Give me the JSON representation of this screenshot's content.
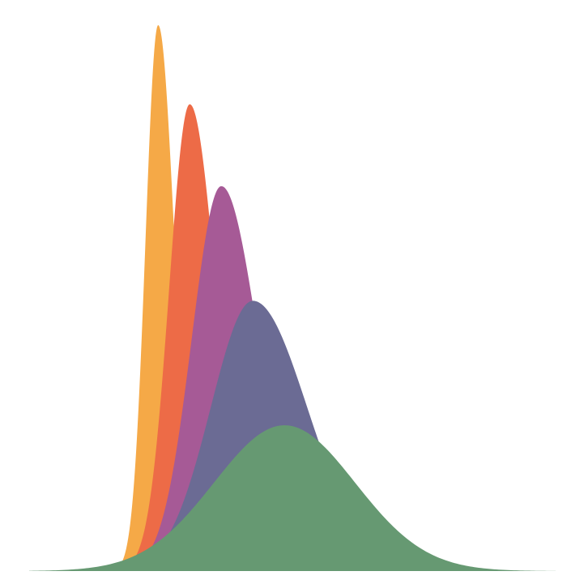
{
  "chart_data": {
    "type": "area",
    "title": "",
    "xlabel": "",
    "ylabel": "",
    "xlim": [
      0,
      100
    ],
    "ylim": [
      0,
      100
    ],
    "grid": false,
    "legend": "none",
    "series": [
      {
        "name": "orange",
        "color": "#F5A947",
        "peak_x": 24.5,
        "peak_y": 100,
        "sigma_left": 2.4,
        "sigma_right": 3.1,
        "x_start": 15.5,
        "x_end": 46
      },
      {
        "name": "red-orange",
        "color": "#ED6B47",
        "peak_x": 30.5,
        "peak_y": 85.5,
        "sigma_left": 3.9,
        "sigma_right": 5.0,
        "x_start": 15.5,
        "x_end": 52
      },
      {
        "name": "purple",
        "color": "#A65A96",
        "peak_x": 36.5,
        "peak_y": 70.5,
        "sigma_left": 5.6,
        "sigma_right": 7.0,
        "x_start": 16,
        "x_end": 58
      },
      {
        "name": "slate",
        "color": "#6B6B94",
        "peak_x": 42.5,
        "peak_y": 49.5,
        "sigma_left": 8.0,
        "sigma_right": 10.3,
        "x_start": 16.5,
        "x_end": 66
      },
      {
        "name": "green",
        "color": "#669972",
        "peak_x": 48.5,
        "peak_y": 26.7,
        "sigma_left": 13.4,
        "sigma_right": 13.4,
        "x_start": 0,
        "x_end": 100
      }
    ]
  }
}
